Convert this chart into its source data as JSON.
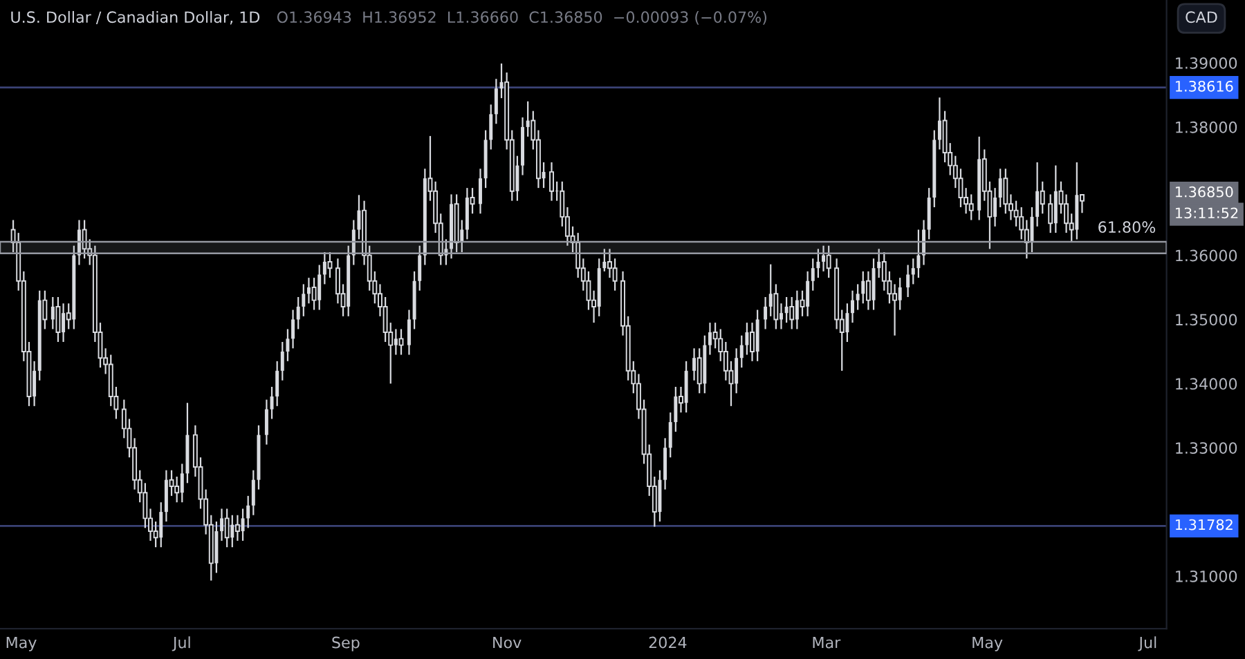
{
  "chart_data": {
    "type": "candlestick",
    "title": "U.S. Dollar / Canadian Dollar, 1D",
    "subtitle": "O1.36943  H1.36952  L1.36660  C1.36850  −0.00093 (−0.07%)",
    "ylabel": "CAD",
    "color": "#d9dbe0",
    "x": [
      "2023-04-28",
      "2023-04-30",
      "2023-05-02",
      "2023-05-04",
      "2023-05-06",
      "2023-05-08",
      "2023-05-10",
      "2023-05-13",
      "2023-05-15",
      "2023-05-17",
      "2023-05-19",
      "2023-05-21",
      "2023-05-23",
      "2023-05-25",
      "2023-05-27",
      "2023-05-29",
      "2023-05-31",
      "2023-06-02",
      "2023-06-04",
      "2023-06-06",
      "2023-06-09",
      "2023-06-11",
      "2023-06-13",
      "2023-06-15",
      "2023-06-17",
      "2023-06-19",
      "2023-06-21",
      "2023-06-23",
      "2023-06-25",
      "2023-06-27",
      "2023-06-29",
      "2023-07-01",
      "2023-07-03",
      "2023-07-06",
      "2023-07-08",
      "2023-07-10",
      "2023-07-12",
      "2023-07-14",
      "2023-07-16",
      "2023-07-18",
      "2023-07-20",
      "2023-07-22",
      "2023-07-24",
      "2023-07-26",
      "2023-07-28",
      "2023-07-30",
      "2023-08-02",
      "2023-08-04",
      "2023-08-06",
      "2023-08-08",
      "2023-08-10",
      "2023-08-12",
      "2023-08-14",
      "2023-08-16",
      "2023-08-18",
      "2023-08-20",
      "2023-08-22",
      "2023-08-24",
      "2023-08-26",
      "2023-08-29",
      "2023-08-31",
      "2023-09-02",
      "2023-09-04",
      "2023-09-06",
      "2023-09-08",
      "2023-09-10",
      "2023-09-12",
      "2023-09-14",
      "2023-09-16",
      "2023-09-18",
      "2023-09-20",
      "2023-09-22",
      "2023-09-25",
      "2023-09-27",
      "2023-09-29",
      "2023-10-01",
      "2023-10-03",
      "2023-10-05",
      "2023-10-07",
      "2023-10-09",
      "2023-10-11",
      "2023-10-13",
      "2023-10-15",
      "2023-10-17",
      "2023-10-19",
      "2023-10-22",
      "2023-10-24",
      "2023-10-26",
      "2023-10-28",
      "2023-10-30",
      "2023-11-01",
      "2023-11-03",
      "2023-11-05",
      "2023-11-07",
      "2023-11-09",
      "2023-11-11",
      "2023-11-13",
      "2023-11-15",
      "2023-11-18",
      "2023-11-20",
      "2023-11-22",
      "2023-11-24",
      "2023-11-26",
      "2023-11-28",
      "2023-11-30",
      "2023-12-02",
      "2023-12-04",
      "2023-12-06",
      "2023-12-08",
      "2023-12-10",
      "2023-12-12",
      "2023-12-15",
      "2023-12-17",
      "2023-12-19",
      "2023-12-21",
      "2023-12-23",
      "2023-12-25",
      "2023-12-27",
      "2023-12-29",
      "2023-12-31",
      "2024-01-02",
      "2024-01-04",
      "2024-01-06",
      "2024-01-08",
      "2024-01-11",
      "2024-01-13",
      "2024-01-15",
      "2024-01-17",
      "2024-01-19",
      "2024-01-21",
      "2024-01-23",
      "2024-01-25",
      "2024-01-27",
      "2024-01-29",
      "2024-01-31",
      "2024-02-02",
      "2024-02-04",
      "2024-02-07",
      "2024-02-09",
      "2024-02-11",
      "2024-02-13",
      "2024-02-15",
      "2024-02-17",
      "2024-02-19",
      "2024-02-21",
      "2024-02-23",
      "2024-02-25",
      "2024-02-27",
      "2024-02-29",
      "2024-03-02",
      "2024-03-05",
      "2024-03-07",
      "2024-03-09",
      "2024-03-11",
      "2024-03-13",
      "2024-03-15",
      "2024-03-17",
      "2024-03-19",
      "2024-03-21",
      "2024-03-23",
      "2024-03-25",
      "2024-03-27",
      "2024-03-29",
      "2024-04-01",
      "2024-04-03",
      "2024-04-05",
      "2024-04-07",
      "2024-04-09",
      "2024-04-11",
      "2024-04-13",
      "2024-04-15",
      "2024-04-17",
      "2024-04-19",
      "2024-04-21",
      "2024-04-23",
      "2024-04-25",
      "2024-04-28",
      "2024-04-30",
      "2024-05-02",
      "2024-05-04",
      "2024-05-06",
      "2024-05-08",
      "2024-05-10",
      "2024-05-12",
      "2024-05-14",
      "2024-05-16",
      "2024-05-18",
      "2024-05-20",
      "2024-05-22",
      "2024-05-25",
      "2024-05-27",
      "2024-05-29",
      "2024-05-31",
      "2024-06-02",
      "2024-06-04",
      "2024-06-06"
    ],
    "ohlc": [
      [
        1.364,
        1.3655,
        1.3605,
        1.362
      ],
      [
        1.362,
        1.3635,
        1.3545,
        1.356
      ],
      [
        1.356,
        1.3575,
        1.3435,
        1.345
      ],
      [
        1.345,
        1.3465,
        1.3365,
        1.338
      ],
      [
        1.338,
        1.3435,
        1.3365,
        1.342
      ],
      [
        1.342,
        1.3545,
        1.3405,
        1.353
      ],
      [
        1.353,
        1.3545,
        1.3485,
        1.35
      ],
      [
        1.35,
        1.3535,
        1.3485,
        1.352
      ],
      [
        1.352,
        1.3535,
        1.3465,
        1.348
      ],
      [
        1.348,
        1.3525,
        1.3465,
        1.351
      ],
      [
        1.351,
        1.3525,
        1.3485,
        1.35
      ],
      [
        1.35,
        1.3615,
        1.3485,
        1.36
      ],
      [
        1.36,
        1.3655,
        1.3585,
        1.364
      ],
      [
        1.364,
        1.3655,
        1.3595,
        1.361
      ],
      [
        1.361,
        1.3625,
        1.3585,
        1.36
      ],
      [
        1.36,
        1.3615,
        1.3465,
        1.348
      ],
      [
        1.348,
        1.3495,
        1.3425,
        1.344
      ],
      [
        1.344,
        1.3455,
        1.3415,
        1.343
      ],
      [
        1.343,
        1.3445,
        1.3365,
        1.338
      ],
      [
        1.338,
        1.3395,
        1.3345,
        1.336
      ],
      [
        1.336,
        1.3375,
        1.3315,
        1.333
      ],
      [
        1.333,
        1.3345,
        1.3285,
        1.33
      ],
      [
        1.33,
        1.3315,
        1.3235,
        1.325
      ],
      [
        1.325,
        1.3265,
        1.3215,
        1.323
      ],
      [
        1.323,
        1.3245,
        1.3175,
        1.319
      ],
      [
        1.319,
        1.3205,
        1.3155,
        1.317
      ],
      [
        1.317,
        1.3185,
        1.3145,
        1.316
      ],
      [
        1.316,
        1.3215,
        1.3145,
        1.32
      ],
      [
        1.32,
        1.3265,
        1.3185,
        1.325
      ],
      [
        1.325,
        1.3265,
        1.3225,
        1.324
      ],
      [
        1.324,
        1.3255,
        1.3215,
        1.323
      ],
      [
        1.323,
        1.3275,
        1.3215,
        1.326
      ],
      [
        1.326,
        1.337,
        1.3245,
        1.332
      ],
      [
        1.332,
        1.3335,
        1.3255,
        1.327
      ],
      [
        1.327,
        1.3285,
        1.3205,
        1.322
      ],
      [
        1.322,
        1.3235,
        1.3165,
        1.318
      ],
      [
        1.318,
        1.3195,
        1.3093,
        1.312
      ],
      [
        1.312,
        1.3185,
        1.3105,
        1.317
      ],
      [
        1.317,
        1.3205,
        1.3155,
        1.319
      ],
      [
        1.319,
        1.3205,
        1.3145,
        1.316
      ],
      [
        1.316,
        1.3195,
        1.3145,
        1.318
      ],
      [
        1.318,
        1.3195,
        1.3155,
        1.317
      ],
      [
        1.317,
        1.3205,
        1.3155,
        1.319
      ],
      [
        1.319,
        1.3225,
        1.3175,
        1.321
      ],
      [
        1.321,
        1.3265,
        1.3195,
        1.325
      ],
      [
        1.325,
        1.3335,
        1.3235,
        1.332
      ],
      [
        1.332,
        1.3375,
        1.3305,
        1.336
      ],
      [
        1.336,
        1.3395,
        1.3345,
        1.338
      ],
      [
        1.338,
        1.3435,
        1.3365,
        1.342
      ],
      [
        1.342,
        1.3465,
        1.3405,
        1.345
      ],
      [
        1.345,
        1.3485,
        1.3435,
        1.347
      ],
      [
        1.347,
        1.3515,
        1.3455,
        1.35
      ],
      [
        1.35,
        1.3535,
        1.3485,
        1.352
      ],
      [
        1.352,
        1.3555,
        1.3505,
        1.354
      ],
      [
        1.354,
        1.3565,
        1.3525,
        1.355
      ],
      [
        1.355,
        1.3565,
        1.3515,
        1.353
      ],
      [
        1.353,
        1.3585,
        1.3515,
        1.357
      ],
      [
        1.357,
        1.3605,
        1.3555,
        1.359
      ],
      [
        1.359,
        1.3605,
        1.3565,
        1.358
      ],
      [
        1.358,
        1.3595,
        1.3525,
        1.354
      ],
      [
        1.354,
        1.3555,
        1.3505,
        1.352
      ],
      [
        1.352,
        1.3615,
        1.3505,
        1.36
      ],
      [
        1.36,
        1.3655,
        1.3585,
        1.364
      ],
      [
        1.364,
        1.3694,
        1.3625,
        1.367
      ],
      [
        1.367,
        1.3685,
        1.3585,
        1.36
      ],
      [
        1.36,
        1.3615,
        1.3545,
        1.356
      ],
      [
        1.356,
        1.3575,
        1.3525,
        1.354
      ],
      [
        1.354,
        1.3555,
        1.3505,
        1.352
      ],
      [
        1.352,
        1.3535,
        1.3465,
        1.348
      ],
      [
        1.348,
        1.3495,
        1.34,
        1.346
      ],
      [
        1.346,
        1.3485,
        1.3445,
        1.347
      ],
      [
        1.347,
        1.3485,
        1.3445,
        1.346
      ],
      [
        1.346,
        1.3515,
        1.3445,
        1.35
      ],
      [
        1.35,
        1.3575,
        1.3485,
        1.356
      ],
      [
        1.356,
        1.3615,
        1.3545,
        1.36
      ],
      [
        1.36,
        1.3735,
        1.3585,
        1.372
      ],
      [
        1.372,
        1.3786,
        1.3685,
        1.37
      ],
      [
        1.37,
        1.3715,
        1.3635,
        1.365
      ],
      [
        1.365,
        1.3665,
        1.3585,
        1.36
      ],
      [
        1.36,
        1.3625,
        1.3585,
        1.361
      ],
      [
        1.361,
        1.3695,
        1.3595,
        1.368
      ],
      [
        1.368,
        1.3695,
        1.3605,
        1.362
      ],
      [
        1.362,
        1.3655,
        1.3605,
        1.364
      ],
      [
        1.364,
        1.3705,
        1.3625,
        1.369
      ],
      [
        1.369,
        1.3705,
        1.3665,
        1.368
      ],
      [
        1.368,
        1.3735,
        1.3665,
        1.372
      ],
      [
        1.372,
        1.3795,
        1.3705,
        1.378
      ],
      [
        1.378,
        1.3835,
        1.3765,
        1.382
      ],
      [
        1.382,
        1.3875,
        1.3805,
        1.386
      ],
      [
        1.386,
        1.3899,
        1.3845,
        1.387
      ],
      [
        1.387,
        1.3885,
        1.3765,
        1.378
      ],
      [
        1.378,
        1.3795,
        1.3685,
        1.37
      ],
      [
        1.37,
        1.3755,
        1.3685,
        1.374
      ],
      [
        1.374,
        1.3815,
        1.3725,
        1.38
      ],
      [
        1.38,
        1.384,
        1.3785,
        1.381
      ],
      [
        1.381,
        1.3825,
        1.3765,
        1.378
      ],
      [
        1.378,
        1.3795,
        1.3705,
        1.372
      ],
      [
        1.372,
        1.3745,
        1.3705,
        1.373
      ],
      [
        1.373,
        1.3745,
        1.3685,
        1.37
      ],
      [
        1.37,
        1.3715,
        1.3685,
        1.37
      ],
      [
        1.37,
        1.3715,
        1.3645,
        1.366
      ],
      [
        1.366,
        1.3675,
        1.3615,
        1.363
      ],
      [
        1.363,
        1.3645,
        1.3605,
        1.362
      ],
      [
        1.362,
        1.3635,
        1.3565,
        1.358
      ],
      [
        1.358,
        1.3595,
        1.3545,
        1.356
      ],
      [
        1.356,
        1.3575,
        1.3515,
        1.353
      ],
      [
        1.353,
        1.3545,
        1.3495,
        1.352
      ],
      [
        1.352,
        1.3595,
        1.3505,
        1.358
      ],
      [
        1.358,
        1.361,
        1.3575,
        1.359
      ],
      [
        1.359,
        1.361,
        1.3565,
        1.358
      ],
      [
        1.358,
        1.3595,
        1.3545,
        1.356
      ],
      [
        1.356,
        1.3575,
        1.3475,
        1.349
      ],
      [
        1.349,
        1.3505,
        1.3405,
        1.342
      ],
      [
        1.342,
        1.3435,
        1.3385,
        1.34
      ],
      [
        1.34,
        1.3415,
        1.3345,
        1.336
      ],
      [
        1.336,
        1.3375,
        1.3275,
        1.329
      ],
      [
        1.329,
        1.3305,
        1.3225,
        1.324
      ],
      [
        1.324,
        1.3255,
        1.3177,
        1.32
      ],
      [
        1.32,
        1.3265,
        1.3185,
        1.325
      ],
      [
        1.325,
        1.3315,
        1.3235,
        1.33
      ],
      [
        1.33,
        1.3355,
        1.3285,
        1.334
      ],
      [
        1.334,
        1.3395,
        1.3325,
        1.338
      ],
      [
        1.338,
        1.3395,
        1.3355,
        1.337
      ],
      [
        1.337,
        1.3435,
        1.3355,
        1.342
      ],
      [
        1.342,
        1.3455,
        1.3405,
        1.344
      ],
      [
        1.344,
        1.3455,
        1.3385,
        1.34
      ],
      [
        1.34,
        1.3475,
        1.3385,
        1.346
      ],
      [
        1.346,
        1.3495,
        1.3445,
        1.348
      ],
      [
        1.348,
        1.3495,
        1.3455,
        1.347
      ],
      [
        1.347,
        1.3485,
        1.3435,
        1.345
      ],
      [
        1.345,
        1.3465,
        1.3405,
        1.342
      ],
      [
        1.342,
        1.3435,
        1.3365,
        1.34
      ],
      [
        1.34,
        1.3455,
        1.3385,
        1.344
      ],
      [
        1.344,
        1.3475,
        1.3425,
        1.346
      ],
      [
        1.346,
        1.3495,
        1.3445,
        1.348
      ],
      [
        1.348,
        1.3495,
        1.3435,
        1.345
      ],
      [
        1.345,
        1.3515,
        1.3435,
        1.35
      ],
      [
        1.35,
        1.3535,
        1.3485,
        1.352
      ],
      [
        1.352,
        1.3586,
        1.3505,
        1.354
      ],
      [
        1.354,
        1.3555,
        1.3485,
        1.35
      ],
      [
        1.35,
        1.3525,
        1.3485,
        1.351
      ],
      [
        1.351,
        1.3535,
        1.3495,
        1.352
      ],
      [
        1.352,
        1.3535,
        1.3485,
        1.35
      ],
      [
        1.35,
        1.3545,
        1.3485,
        1.353
      ],
      [
        1.353,
        1.3545,
        1.3505,
        1.352
      ],
      [
        1.352,
        1.3575,
        1.3505,
        1.356
      ],
      [
        1.356,
        1.3595,
        1.3545,
        1.358
      ],
      [
        1.358,
        1.361,
        1.3565,
        1.359
      ],
      [
        1.359,
        1.3615,
        1.3575,
        1.36
      ],
      [
        1.36,
        1.3615,
        1.3565,
        1.358
      ],
      [
        1.358,
        1.3595,
        1.3485,
        1.35
      ],
      [
        1.35,
        1.3515,
        1.342,
        1.348
      ],
      [
        1.348,
        1.3525,
        1.3465,
        1.351
      ],
      [
        1.351,
        1.3545,
        1.3495,
        1.353
      ],
      [
        1.353,
        1.3555,
        1.3515,
        1.354
      ],
      [
        1.354,
        1.3575,
        1.3525,
        1.356
      ],
      [
        1.356,
        1.3575,
        1.3515,
        1.353
      ],
      [
        1.353,
        1.3595,
        1.3515,
        1.358
      ],
      [
        1.358,
        1.361,
        1.3565,
        1.359
      ],
      [
        1.359,
        1.3605,
        1.3545,
        1.356
      ],
      [
        1.356,
        1.3575,
        1.3525,
        1.354
      ],
      [
        1.354,
        1.3555,
        1.3475,
        1.353
      ],
      [
        1.353,
        1.3565,
        1.3515,
        1.355
      ],
      [
        1.355,
        1.3585,
        1.3535,
        1.357
      ],
      [
        1.357,
        1.3595,
        1.3555,
        1.358
      ],
      [
        1.358,
        1.364,
        1.3565,
        1.36
      ],
      [
        1.36,
        1.3655,
        1.3585,
        1.364
      ],
      [
        1.364,
        1.3705,
        1.3625,
        1.369
      ],
      [
        1.369,
        1.3795,
        1.3675,
        1.378
      ],
      [
        1.378,
        1.3846,
        1.3765,
        1.381
      ],
      [
        1.381,
        1.3825,
        1.3745,
        1.376
      ],
      [
        1.376,
        1.3775,
        1.3725,
        1.374
      ],
      [
        1.374,
        1.3755,
        1.3705,
        1.372
      ],
      [
        1.372,
        1.3735,
        1.3675,
        1.369
      ],
      [
        1.369,
        1.3705,
        1.3665,
        1.368
      ],
      [
        1.368,
        1.3695,
        1.3655,
        1.367
      ],
      [
        1.367,
        1.3785,
        1.3655,
        1.375
      ],
      [
        1.375,
        1.3765,
        1.3685,
        1.37
      ],
      [
        1.37,
        1.3715,
        1.361,
        1.366
      ],
      [
        1.366,
        1.3705,
        1.3645,
        1.369
      ],
      [
        1.369,
        1.3735,
        1.3675,
        1.372
      ],
      [
        1.372,
        1.3735,
        1.3665,
        1.368
      ],
      [
        1.368,
        1.3695,
        1.3655,
        1.367
      ],
      [
        1.367,
        1.3685,
        1.3645,
        1.366
      ],
      [
        1.366,
        1.3675,
        1.3625,
        1.364
      ],
      [
        1.364,
        1.3655,
        1.3595,
        1.362
      ],
      [
        1.362,
        1.3675,
        1.3605,
        1.366
      ],
      [
        1.366,
        1.3745,
        1.3645,
        1.37
      ],
      [
        1.37,
        1.3715,
        1.3665,
        1.368
      ],
      [
        1.368,
        1.3695,
        1.3635,
        1.365
      ],
      [
        1.365,
        1.374,
        1.3635,
        1.37
      ],
      [
        1.37,
        1.3715,
        1.3665,
        1.368
      ],
      [
        1.368,
        1.3695,
        1.3635,
        1.365
      ],
      [
        1.365,
        1.3665,
        1.362,
        1.364
      ],
      [
        1.364,
        1.3745,
        1.3625,
        1.3694
      ],
      [
        1.36943,
        1.36952,
        1.3666,
        1.3685
      ]
    ],
    "xlim": [
      "2023-04-23",
      "2024-07-08"
    ],
    "xticks": [
      {
        "value": "2023-05-01",
        "label": "May"
      },
      {
        "value": "2023-07-01",
        "label": "Jul"
      },
      {
        "value": "2023-09-01",
        "label": "Sep"
      },
      {
        "value": "2023-11-01",
        "label": "Nov"
      },
      {
        "value": "2024-01-01",
        "label": "2024"
      },
      {
        "value": "2024-03-01",
        "label": "Mar"
      },
      {
        "value": "2024-05-01",
        "label": "May"
      },
      {
        "value": "2024-07-01",
        "label": "Jul"
      }
    ],
    "ylim": [
      1.3018,
      1.3998
    ],
    "yticks": [
      {
        "value": 1.31,
        "label": "1.31000"
      },
      {
        "value": 1.33,
        "label": "1.33000"
      },
      {
        "value": 1.34,
        "label": "1.34000"
      },
      {
        "value": 1.35,
        "label": "1.35000"
      },
      {
        "value": 1.36,
        "label": "1.36000"
      },
      {
        "value": 1.38,
        "label": "1.38000"
      },
      {
        "value": 1.39,
        "label": "1.39000"
      }
    ],
    "ref_lines": [
      {
        "axis": "y",
        "value": 1.38616,
        "label": "1.38616",
        "color": "#3a4275"
      },
      {
        "axis": "y",
        "value": 1.31782,
        "label": "1.31782",
        "color": "#3a4275"
      }
    ],
    "bands": [
      {
        "axis": "y",
        "from": 1.3603,
        "to": 1.3621,
        "label": "61.80%",
        "color": "#9598a1"
      }
    ],
    "annotations": [
      "1.36850",
      "13:11:52"
    ],
    "grid": false,
    "legend": false
  }
}
